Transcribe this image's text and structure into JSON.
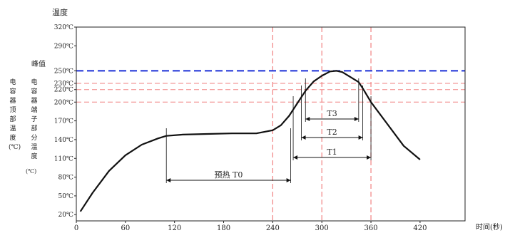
{
  "chart_data": {
    "type": "line",
    "title": "",
    "ylabel": "温度",
    "xlabel": "时间(秒)",
    "xlim": [
      0,
      475
    ],
    "ylim": [
      10,
      320
    ],
    "x_ticks": [
      0,
      60,
      120,
      180,
      240,
      300,
      360,
      420
    ],
    "y_ticks": [
      20,
      50,
      80,
      110,
      140,
      170,
      200,
      230,
      250,
      290,
      320
    ],
    "y_ticks_minor_labels": [
      220
    ],
    "y_tick_unit": "℃",
    "grid": false,
    "series": [
      {
        "x": [
          5,
          20,
          40,
          60,
          80,
          100,
          110,
          130,
          160,
          190,
          220,
          240,
          250,
          260,
          270,
          280,
          290,
          300,
          310,
          318,
          325,
          335,
          345,
          350,
          360,
          380,
          400,
          420
        ],
        "y": [
          25,
          55,
          90,
          115,
          132,
          142,
          146,
          148,
          149,
          150,
          150,
          155,
          163,
          178,
          198,
          218,
          233,
          242,
          249,
          250,
          248,
          240,
          232,
          222,
          200,
          165,
          130,
          108
        ]
      }
    ],
    "peak_line": {
      "y": 250,
      "label": "峰值"
    },
    "ref_lines_y": [
      230,
      220,
      200
    ],
    "ref_lines_x": [
      240,
      300,
      360
    ],
    "annotations": [
      {
        "label": "预热 T0",
        "x1": 110,
        "x2": 262
      },
      {
        "label": "T3",
        "x1": 280,
        "x2": 345
      },
      {
        "label": "T2",
        "x1": 275,
        "x2": 350
      },
      {
        "label": "T1",
        "x1": 265,
        "x2": 360
      }
    ],
    "side_labels": {
      "top_temp": "电容器顶部温度(℃)",
      "terminal_temp_prefix": "电容器端子部分温度",
      "terminal_temp_unit": "(℃)"
    }
  }
}
